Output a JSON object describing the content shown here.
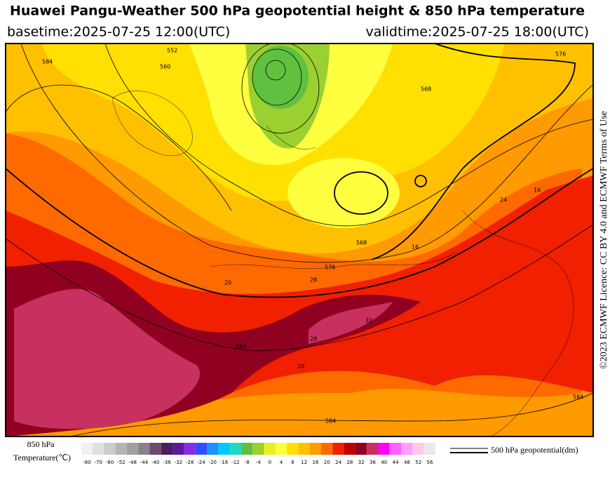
{
  "header": {
    "title": "Huawei Pangu-Weather 500 hPa geopotential height & 850 hPa temperature",
    "basetime": "basetime:2025-07-25 12:00(UTC)",
    "validtime": "validtime:2025-07-25 18:00(UTC)"
  },
  "credit": "©2023 ECMWF Licence: CC BY 4.0 and ECMWF Terms of Use",
  "map": {
    "contour_labels": [
      "584",
      "552",
      "560",
      "568",
      "576",
      "568",
      "576",
      "584",
      "584",
      "584",
      "20",
      "28",
      "32",
      "28",
      "20",
      "16",
      "24",
      "16"
    ]
  },
  "legend": {
    "colorbar_title": [
      "850 hPa",
      "Temperature(℃)"
    ],
    "colorbar_ticks": [
      -80,
      -70,
      -60,
      -52,
      -48,
      -44,
      -40,
      -36,
      -32,
      -28,
      -24,
      -20,
      -16,
      -12,
      -8,
      -4,
      0,
      4,
      8,
      12,
      16,
      20,
      24,
      28,
      32,
      36,
      40,
      44,
      48,
      52,
      56
    ],
    "colorbar_colors": [
      "#f0f0f0",
      "#e0e0e0",
      "#cccccc",
      "#b4b4b4",
      "#a0a0a0",
      "#8c7f8c",
      "#6e4a6e",
      "#4a2060",
      "#5a1a9a",
      "#8a2be2",
      "#3050ff",
      "#2090ff",
      "#00c8ff",
      "#20d8c0",
      "#60c040",
      "#9ad030",
      "#e8f020",
      "#ffff40",
      "#ffe000",
      "#ffc000",
      "#ff9a00",
      "#ff6a00",
      "#f02000",
      "#c00000",
      "#900020",
      "#c83060",
      "#ff00ff",
      "#ff60ff",
      "#ffa0ff",
      "#ffc8e8",
      "#e8e8e8"
    ],
    "line_label": "500 hPa geopotential(dm)"
  }
}
